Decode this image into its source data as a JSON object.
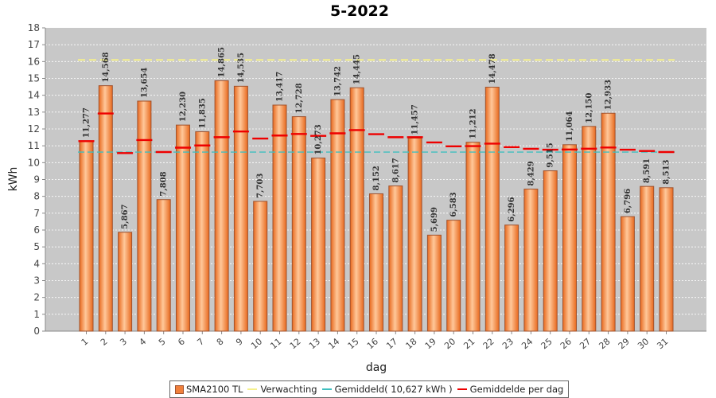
{
  "chart_data": {
    "type": "bar",
    "title": "5-2022",
    "xlabel": "dag",
    "ylabel": "kWh",
    "ylim": [
      0,
      18
    ],
    "yticks": [
      0,
      1,
      2,
      3,
      4,
      5,
      6,
      7,
      8,
      9,
      10,
      11,
      12,
      13,
      14,
      15,
      16,
      17,
      18
    ],
    "categories": [
      "1",
      "2",
      "3",
      "4",
      "5",
      "6",
      "7",
      "8",
      "9",
      "10",
      "11",
      "12",
      "13",
      "14",
      "15",
      "16",
      "17",
      "18",
      "19",
      "20",
      "21",
      "22",
      "23",
      "24",
      "25",
      "26",
      "27",
      "28",
      "29",
      "30",
      "31"
    ],
    "series": [
      {
        "name": "SMA2100 TL",
        "type": "bar",
        "values": [
          11.277,
          14.568,
          5.867,
          13.654,
          7.808,
          12.23,
          11.835,
          14.865,
          14.535,
          7.703,
          13.417,
          12.728,
          10.273,
          13.742,
          14.445,
          8.152,
          8.617,
          11.457,
          5.699,
          6.583,
          11.212,
          14.478,
          6.296,
          8.429,
          9.515,
          11.064,
          12.15,
          12.933,
          6.796,
          8.591,
          8.513
        ],
        "labels": [
          "11,277",
          "14,568",
          "5,867",
          "13,654",
          "7,808",
          "12,230",
          "11,835",
          "14,865",
          "14,535",
          "7,703",
          "13,417",
          "12,728",
          "10,273",
          "13,742",
          "14,445",
          "8,152",
          "8,617",
          "11,457",
          "5,699",
          "6,583",
          "11,212",
          "14,478",
          "6,296",
          "8,429",
          "9,515",
          "11,064",
          "12,150",
          "12,933",
          "6,796",
          "8,591",
          "8,513"
        ]
      },
      {
        "name": "Verwachting",
        "type": "line",
        "value": 16.1
      },
      {
        "name": "Gemiddeld( 10,627 kWh )",
        "type": "line",
        "value": 10.627
      },
      {
        "name": "Gemiddelde per dag",
        "type": "marker",
        "values": [
          11.277,
          12.92,
          10.57,
          11.34,
          10.63,
          10.89,
          11.02,
          11.51,
          11.85,
          11.43,
          11.61,
          11.7,
          11.59,
          11.74,
          11.93,
          11.69,
          11.51,
          11.51,
          11.2,
          10.97,
          10.98,
          11.13,
          10.92,
          10.82,
          10.77,
          10.78,
          10.83,
          10.9,
          10.77,
          10.69,
          10.63
        ]
      }
    ],
    "colors": {
      "plot_bg": "#c8c8c8",
      "bar_fill": "#f0803c",
      "bar_highlight": "#ffc89a",
      "bar_edge": "#a0522d",
      "verwachting": "#f5f08c",
      "gemiddeld": "#3fbfbf",
      "per_dag": "#ee0000",
      "grid": "#ffffff"
    },
    "legend_position": "bottom-center"
  }
}
